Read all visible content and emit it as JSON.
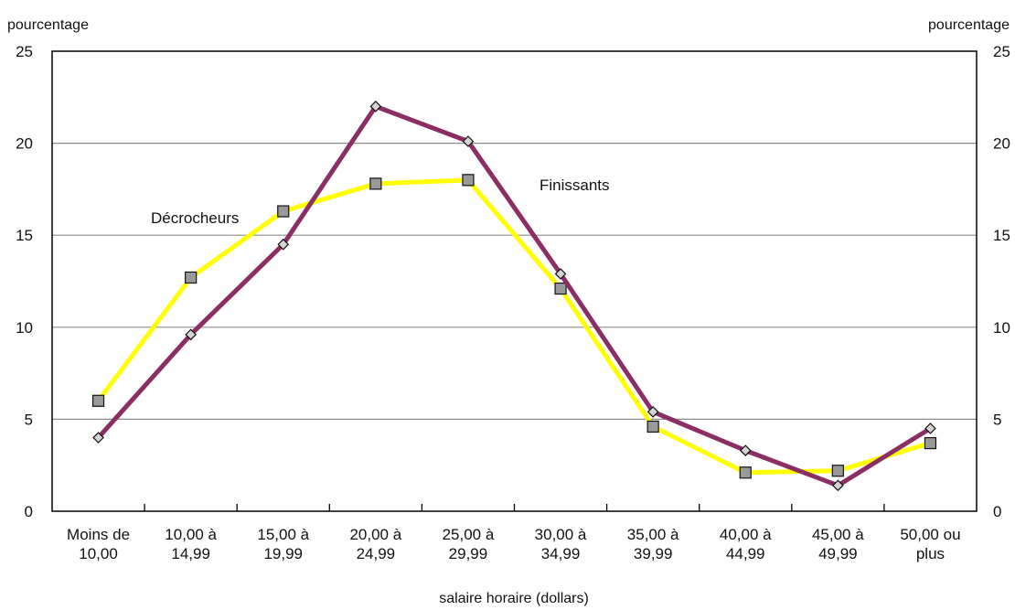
{
  "chart_data": {
    "type": "line",
    "categories": [
      [
        "Moins de",
        "10,00"
      ],
      [
        "10,00 à",
        "14,99"
      ],
      [
        "15,00 à",
        "19,99"
      ],
      [
        "20,00 à",
        "24,99"
      ],
      [
        "25,00 à",
        "29,99"
      ],
      [
        "30,00 à",
        "34,99"
      ],
      [
        "35,00 à",
        "39,99"
      ],
      [
        "40,00 à",
        "44,99"
      ],
      [
        "45,00 à",
        "49,99"
      ],
      [
        "50,00 ou",
        "plus"
      ]
    ],
    "series": [
      {
        "name": "Décrocheurs",
        "color": "#ffff00",
        "marker": "square",
        "values": [
          6.0,
          12.7,
          16.3,
          17.8,
          18.0,
          12.1,
          4.6,
          2.1,
          2.2,
          3.7
        ]
      },
      {
        "name": "Finissants",
        "color": "#8b2e63",
        "marker": "diamond",
        "values": [
          4.0,
          9.6,
          14.5,
          22.0,
          20.1,
          12.9,
          5.4,
          3.3,
          1.4,
          4.5
        ]
      }
    ],
    "xlabel": "salaire horaire (dollars)",
    "ylabel_left": "pourcentage",
    "ylabel_right": "pourcentage",
    "ylim": [
      0,
      25
    ],
    "yticks": [
      0,
      5,
      10,
      15,
      20,
      25
    ],
    "grid": true,
    "annotations": [
      {
        "text": "Décrocheurs",
        "series": "Décrocheurs"
      },
      {
        "text": "Finissants",
        "series": "Finissants"
      }
    ]
  }
}
